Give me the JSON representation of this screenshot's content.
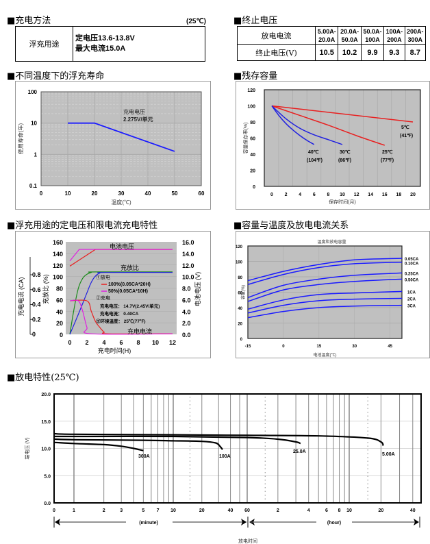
{
  "charging_method": {
    "title": "■充电方法",
    "temp_note": "(25℃)",
    "row_label": "浮充用途",
    "line1": "定电压13.6-13.8V",
    "line2": "最大电流15.0A"
  },
  "cutoff_voltage": {
    "title": "■终止电压",
    "header_label": "放电电流",
    "value_label": "终止电压(V)",
    "ranges": [
      "5.00A-20.0A",
      "20.0A-50.0A",
      "50.0A-100A",
      "100A-200A",
      "200A-300A"
    ],
    "range_top": [
      "5.00A-",
      "20.0A-",
      "50.0A-",
      "100A-",
      "200A-"
    ],
    "range_bottom": [
      "20.0A",
      "50.0A",
      "100A",
      "200A",
      "300A"
    ],
    "voltages": [
      "10.5",
      "10.2",
      "9.9",
      "9.3",
      "8.7"
    ]
  },
  "float_life": {
    "title": "■不同温度下的浮充寿命"
  },
  "residual": {
    "title": "■残存容量"
  },
  "float_charge": {
    "title": "■浮充用途的定电压和限电流充电特性"
  },
  "cap_temp": {
    "title": "■容量与温度及放电电流关系"
  },
  "discharge": {
    "title": "■放电特性(25℃)"
  },
  "chart_data": [
    {
      "id": "float_life",
      "type": "line",
      "title": "",
      "xlabel": "温度(℃)",
      "ylabel": "使用寿命(年)",
      "yscale": "log",
      "xlim": [
        0,
        60
      ],
      "ylim": [
        0.1,
        100
      ],
      "xticks": [
        "0",
        "10",
        "20",
        "30",
        "40",
        "50",
        "60"
      ],
      "yticks": [
        "0.1",
        "1",
        "10",
        "100"
      ],
      "annotation": [
        "充电电压",
        "2.275V/单元"
      ],
      "grid": true,
      "series": [
        {
          "name": "life",
          "color": "#1a1aff",
          "x": [
            10,
            20,
            50
          ],
          "y": [
            10,
            10,
            1.25
          ]
        }
      ]
    },
    {
      "id": "residual",
      "type": "line",
      "xlabel": "保存时间(月)",
      "ylabel": "容量保存率(%)",
      "xlim": [
        0,
        20
      ],
      "ylim": [
        0,
        120
      ],
      "xticks": [
        "0",
        "2",
        "4",
        "6",
        "8",
        "10",
        "12",
        "14",
        "16",
        "18",
        "20"
      ],
      "yticks": [
        "0",
        "20",
        "40",
        "60",
        "80",
        "100",
        "120"
      ],
      "grid": true,
      "series": [
        {
          "name": "5℃",
          "sub": "(41℉)",
          "color": "#e82020",
          "x": [
            0,
            20
          ],
          "y": [
            100,
            80
          ]
        },
        {
          "name": "25℃",
          "sub": "(77℉)",
          "color": "#e82020",
          "x": [
            0,
            4,
            8,
            12,
            16
          ],
          "y": [
            100,
            88,
            76,
            63,
            51
          ]
        },
        {
          "name": "30℃",
          "sub": "(86℉)",
          "color": "#2020e0",
          "x": [
            0,
            2,
            4,
            6,
            8,
            10
          ],
          "y": [
            100,
            84,
            72,
            64,
            58,
            52
          ]
        },
        {
          "name": "40℃",
          "sub": "(104℉)",
          "color": "#2020e0",
          "x": [
            0,
            1,
            2,
            3,
            4,
            5,
            6
          ],
          "y": [
            100,
            88,
            78,
            70,
            63,
            57,
            52
          ]
        }
      ]
    },
    {
      "id": "float_charge",
      "type": "line",
      "xlabel": "充电时间(H)",
      "ylabel_left_outer": "充电电流 (CA)",
      "ylabel_left_inner": "充放比 (%)",
      "ylabel_right": "电池电压 (V)",
      "xlim": [
        0,
        12
      ],
      "ylim_pct": [
        0,
        160
      ],
      "ylim_ca": [
        0,
        0.8
      ],
      "ylim_v": [
        0,
        16
      ],
      "xticks": [
        "0",
        "2",
        "4",
        "6",
        "8",
        "10",
        "12"
      ],
      "yticks_pct": [
        "0",
        "20",
        "40",
        "60",
        "80",
        "100",
        "120",
        "140",
        "160"
      ],
      "yticks_ca": [
        "0",
        "0.2",
        "0.4",
        "0.6",
        "0.8"
      ],
      "yticks_v": [
        "0.0",
        "2.0",
        "4.0",
        "6.0",
        "8.0",
        "10.0",
        "12.0",
        "14.0",
        "16.0"
      ],
      "curve_labels": [
        "电池电压",
        "充放比",
        "充电电流"
      ],
      "legend": {
        "discharge_head": "①放电",
        "item1": "100%(0.05CA*20H)",
        "item2": "50%(0.05CA*10H)",
        "charge_head": "②充电",
        "charge_v": "充电电压：  14.7V(2.45V/单元)",
        "charge_i": "充电电流：  0.40CA",
        "ambient": "③环境温度：  25℃(77℉)"
      },
      "series": [
        {
          "name": "voltage_100",
          "color": "#e82020",
          "axis": "v",
          "x": [
            0,
            3,
            12
          ],
          "y": [
            11.8,
            14.7,
            14.7
          ]
        },
        {
          "name": "voltage_50",
          "color": "#e020e0",
          "axis": "v",
          "x": [
            0,
            1.1,
            12
          ],
          "y": [
            12.7,
            14.7,
            14.7
          ]
        },
        {
          "name": "ratio_50",
          "color": "#1a8a1a",
          "axis": "pct",
          "x": [
            0,
            0.5,
            1,
            1.5,
            2,
            2.5,
            3,
            12
          ],
          "y": [
            0,
            45,
            80,
            97,
            104,
            107,
            108,
            108
          ]
        },
        {
          "name": "ratio_100",
          "color": "#2020e0",
          "axis": "pct",
          "x": [
            0,
            1,
            2,
            2.5,
            3,
            3.5,
            4,
            12
          ],
          "y": [
            0,
            35,
            72,
            90,
            101,
            106,
            107,
            107
          ]
        },
        {
          "name": "current_100",
          "color": "#e82020",
          "axis": "pct",
          "x": [
            0,
            2,
            2.5,
            3,
            3.5,
            4,
            4.5,
            12
          ],
          "y": [
            58,
            58,
            40,
            22,
            12,
            4,
            1,
            1
          ]
        },
        {
          "name": "current_50",
          "color": "#e020e0",
          "axis": "pct",
          "x": [
            0,
            1,
            1.5,
            2,
            2.5,
            12
          ],
          "y": [
            58,
            58,
            40,
            12,
            1,
            1
          ]
        }
      ]
    },
    {
      "id": "cap_temp",
      "type": "line",
      "title": "温度和放电容量",
      "xlabel": "电池温度(℃)",
      "ylabel": "容量(%)",
      "xlim": [
        -15,
        50
      ],
      "ylim": [
        0,
        120
      ],
      "xticks": [
        "-15",
        "0",
        "15",
        "30",
        "45"
      ],
      "xtick_vals": [
        -15,
        0,
        15,
        30,
        45
      ],
      "yticks": [
        "0",
        "20",
        "40",
        "60",
        "80",
        "100",
        "120"
      ],
      "grid": true,
      "series": [
        {
          "name": "0.05CA",
          "color": "#1a1aff",
          "x": [
            -15,
            0,
            15,
            30,
            50
          ],
          "y": [
            75,
            87,
            96,
            102,
            104
          ]
        },
        {
          "name": "0.10CA",
          "color": "#1a1aff",
          "x": [
            -15,
            0,
            15,
            30,
            50
          ],
          "y": [
            70,
            83,
            92,
            97,
            99
          ]
        },
        {
          "name": "0.25CA",
          "color": "#1a1aff",
          "x": [
            -15,
            0,
            15,
            30,
            50
          ],
          "y": [
            53,
            69,
            77,
            82,
            85
          ]
        },
        {
          "name": "0.50CA",
          "color": "#1a1aff",
          "x": [
            -15,
            0,
            15,
            30,
            50
          ],
          "y": [
            48,
            63,
            70,
            74,
            77
          ]
        },
        {
          "name": "1CA",
          "color": "#1a1aff",
          "x": [
            -15,
            0,
            15,
            30,
            50
          ],
          "y": [
            38,
            50,
            57,
            59,
            61
          ]
        },
        {
          "name": "2CA",
          "color": "#1a1aff",
          "x": [
            -15,
            0,
            15,
            30,
            50
          ],
          "y": [
            33,
            43,
            49,
            51,
            52
          ]
        },
        {
          "name": "3CA",
          "color": "#1a1aff",
          "x": [
            -15,
            0,
            15,
            30,
            50
          ],
          "y": [
            27,
            35,
            40,
            42,
            43
          ]
        }
      ]
    },
    {
      "id": "discharge",
      "type": "line",
      "xlabel": "放电时间",
      "ylabel": "端电压 (V)",
      "ylim": [
        0,
        20
      ],
      "yticks": [
        "0.0",
        "5.0",
        "10.0",
        "15.0",
        "20.0"
      ],
      "x_unit": "minutes (log scale)",
      "xticks_minute": [
        "0",
        "1",
        "2",
        "3",
        "5",
        "7",
        "10",
        "20",
        "40",
        "60"
      ],
      "xticks_hour": [
        "2",
        "4",
        "6",
        "8",
        "10",
        "20",
        "40"
      ],
      "range_labels": [
        "(minute)",
        "(hour)"
      ],
      "series": [
        {
          "name": "300A",
          "x_min": [
            0.05,
            1,
            2,
            3,
            4,
            5
          ],
          "y": [
            11.1,
            10.9,
            10.7,
            10.4,
            10.0,
            9.6
          ]
        },
        {
          "name": "100A",
          "x_min": [
            0.05,
            1,
            5,
            10,
            20,
            28,
            31,
            33
          ],
          "y": [
            11.7,
            11.6,
            11.5,
            11.4,
            11.3,
            11.0,
            10.4,
            9.8
          ]
        },
        {
          "name": "25.0A",
          "x_min": [
            0.05,
            1,
            10,
            60,
            120,
            180,
            200
          ],
          "y": [
            12.2,
            12.2,
            12.2,
            12.0,
            11.7,
            11.2,
            10.9
          ]
        },
        {
          "name": "5.00A",
          "x_min": [
            0.05,
            1,
            10,
            60,
            300,
            900,
            1200,
            1260
          ],
          "y": [
            12.7,
            12.6,
            12.5,
            12.4,
            12.3,
            11.9,
            11.2,
            10.5
          ]
        }
      ]
    }
  ]
}
